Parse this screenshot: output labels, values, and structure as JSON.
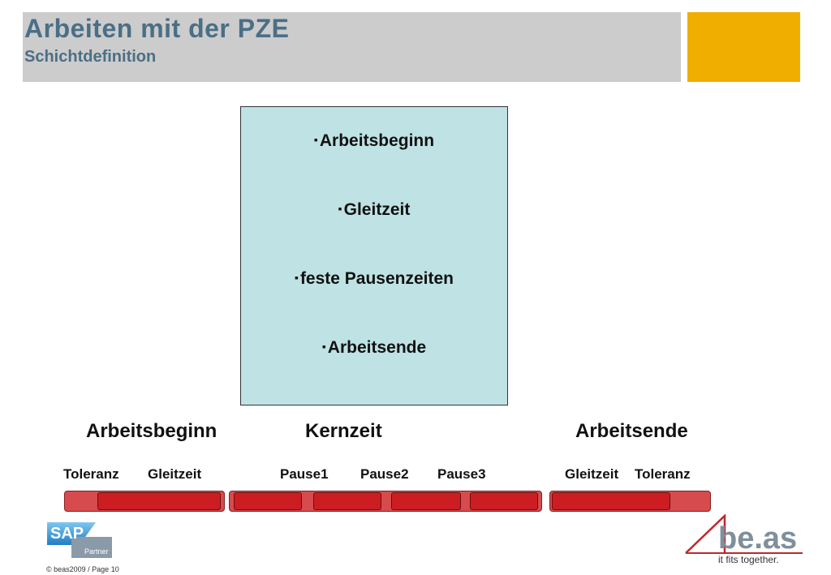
{
  "header": {
    "title": "Arbeiten mit der PZE",
    "subtitle": "Schichtdefinition"
  },
  "info_box": {
    "bullet": "▪",
    "items": [
      "Arbeitsbeginn",
      "Gleitzeit",
      "feste Pausenzeiten",
      "Arbeitsende"
    ]
  },
  "timeline": {
    "section_labels": {
      "start": "Arbeitsbeginn",
      "core": "Kernzeit",
      "end": "Arbeitsende"
    },
    "segment_labels": {
      "toleranz_left": "Toleranz",
      "gleitzeit_left": "Gleitzeit",
      "pause1": "Pause1",
      "pause2": "Pause2",
      "pause3": "Pause3",
      "gleitzeit_right": "Gleitzeit",
      "toleranz_right": "Toleranz"
    }
  },
  "logos": {
    "sap_text": "SAP",
    "sap_partner": "Partner",
    "beas_text": "be.as",
    "beas_tagline": "it fits together."
  },
  "footer": {
    "copyright": "© beas2009 / Page 10"
  },
  "colors": {
    "header_band": "#cccccc",
    "header_text": "#4a6f86",
    "accent": "#f0ae00",
    "info_box": "#bfe2e4",
    "bar_light": "#d64b4e",
    "bar_dark": "#cc1e22"
  }
}
